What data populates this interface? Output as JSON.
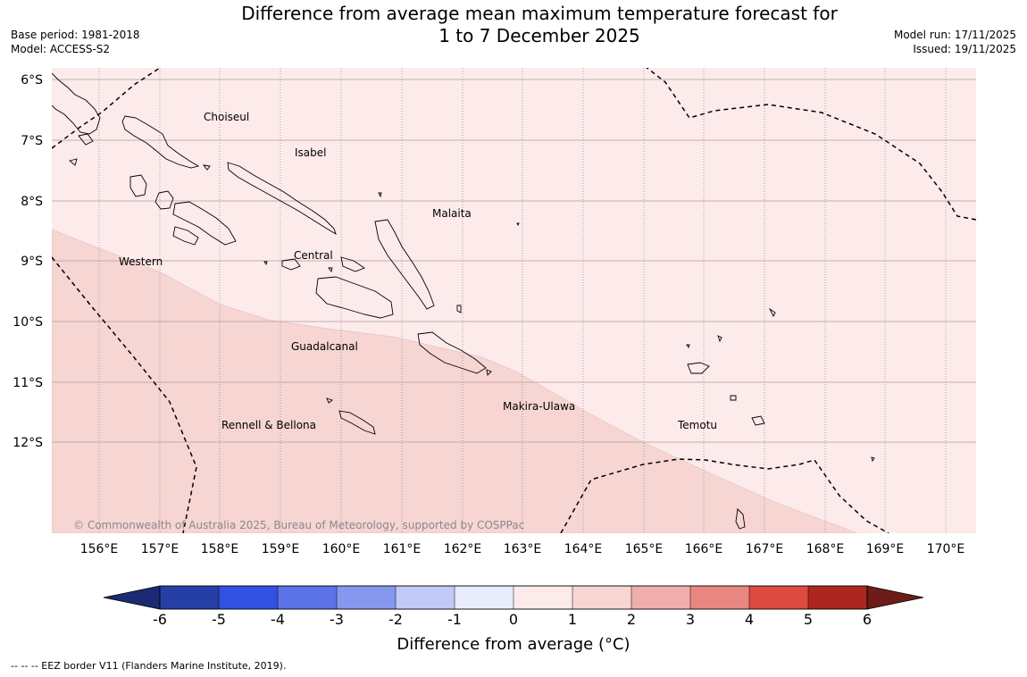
{
  "title": {
    "line1": "Difference from average mean maximum temperature forecast for",
    "line2": "1 to 7 December 2025"
  },
  "meta_left": {
    "base_period": "Base period: 1981-2018",
    "model": "Model: ACCESS-S2"
  },
  "meta_right": {
    "model_run": "Model run: 17/11/2025",
    "issued": "Issued: 19/11/2025"
  },
  "map": {
    "lon_labels": [
      "156°E",
      "157°E",
      "158°E",
      "159°E",
      "160°E",
      "161°E",
      "162°E",
      "163°E",
      "164°E",
      "165°E",
      "166°E",
      "167°E",
      "168°E",
      "169°E",
      "170°E"
    ],
    "lat_labels": [
      "6°S",
      "7°S",
      "8°S",
      "9°S",
      "10°S",
      "11°S",
      "12°S"
    ],
    "regions": [
      "Choiseul",
      "Isabel",
      "Malaita",
      "Western",
      "Central",
      "Guadalcanal",
      "Makira-Ulawa",
      "Rennell & Bellona",
      "Temotu"
    ],
    "copyright": "© Commonwealth of Australia 2025, Bureau of Meteorology, supported by COSPPac",
    "colors": {
      "band_0_1": "#fcebea",
      "band_1_2": "#f6d5d3"
    }
  },
  "colorbar": {
    "label": "Difference from average (°C)",
    "ticks": [
      "-6",
      "-5",
      "-4",
      "-3",
      "-2",
      "-1",
      "0",
      "1",
      "2",
      "3",
      "4",
      "5",
      "6"
    ],
    "colors": [
      "#263fa6",
      "#3151e0",
      "#5b73e6",
      "#8598ee",
      "#c1c9f6",
      "#e9ecfc",
      "#fcebea",
      "#f6d5d3",
      "#efaeab",
      "#e8877f",
      "#dd4a40",
      "#ad2720"
    ],
    "under_color": "#1b2a72",
    "over_color": "#6e1c18"
  },
  "footnote": "--  --  -- EEZ border V11 (Flanders Marine Institute, 2019)."
}
